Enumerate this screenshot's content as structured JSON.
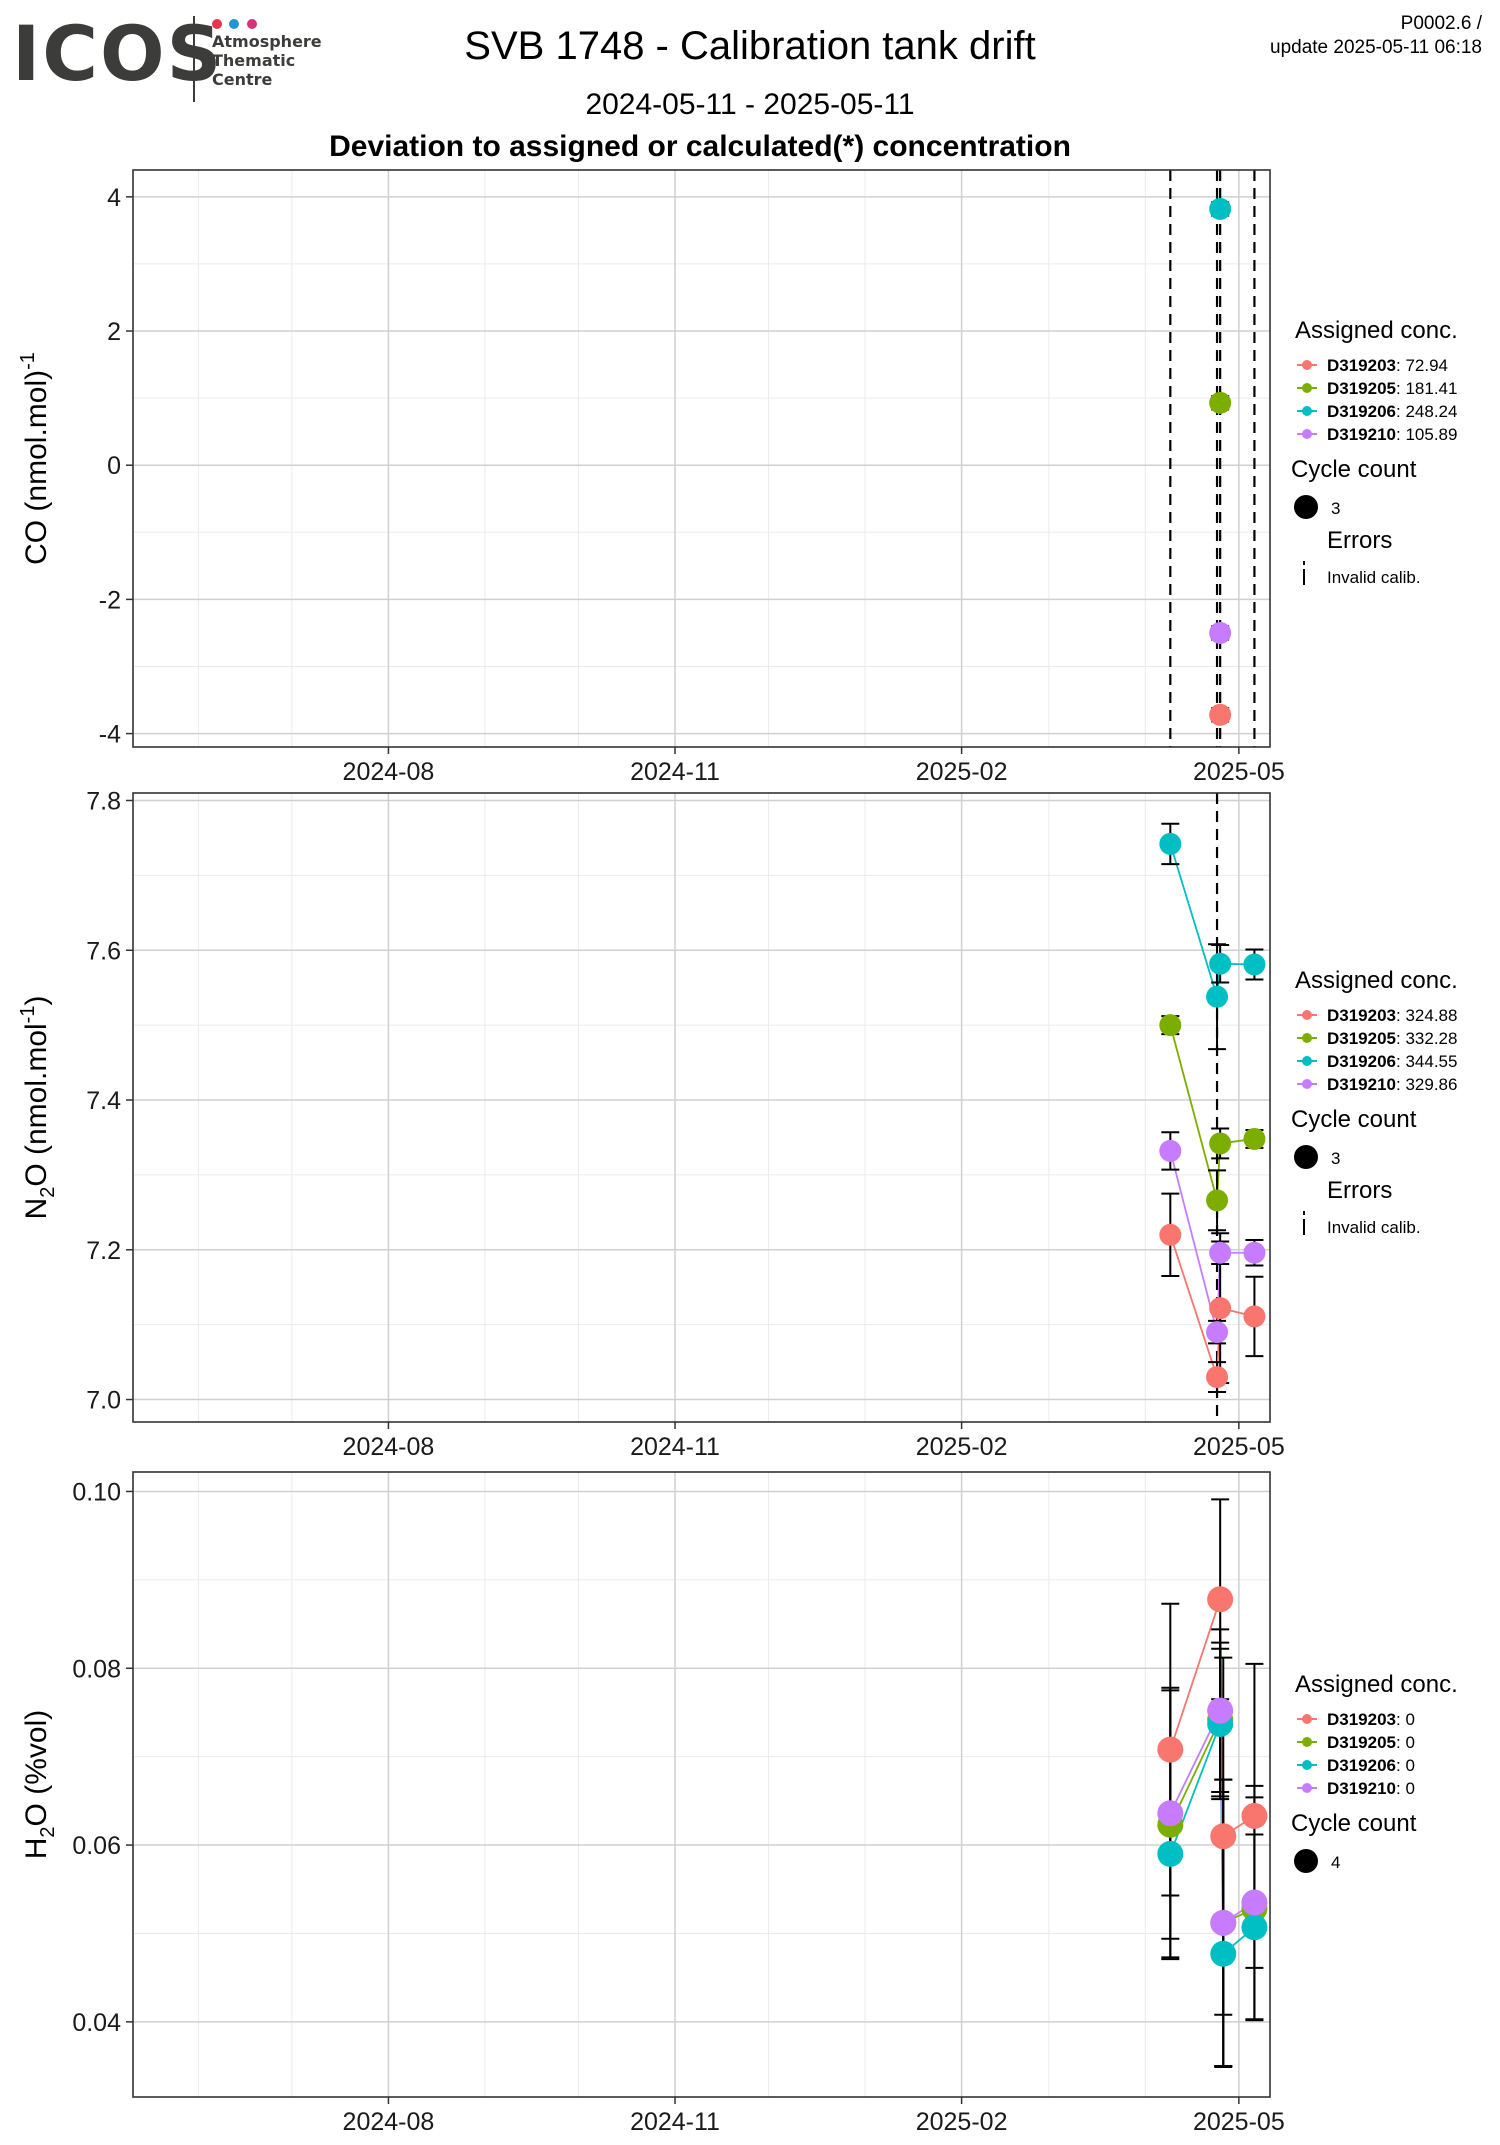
{
  "header": {
    "logo_word": "ICOS",
    "logo_lines": [
      "Atmosphere",
      "Thematic",
      "Centre"
    ],
    "logo_dot_colors": [
      "#e8334a",
      "#1e96d3",
      "#d7337b"
    ],
    "title": "SVB 1748 - Calibration tank drift",
    "date_range": "2024-05-11 - 2025-05-11",
    "subtitle": "Deviation to assigned or calculated(*) concentration",
    "corner_line1": "P0002.6 /",
    "corner_line2": "update  2025-05-11 06:18"
  },
  "colors": {
    "D319203": "#f8766d",
    "D319205": "#7cae00",
    "D319206": "#00bfc4",
    "D319210": "#c77cff"
  },
  "chart_data": [
    {
      "type": "scatter",
      "ylabel": "CO (nmol.mol",
      "ylabel_sup": "-1",
      "ylabel_end": ")",
      "xlim": [
        "2024-05-11",
        "2025-05-11"
      ],
      "ylim": [
        -4.2,
        4.4
      ],
      "yticks": [
        -4,
        -2,
        0,
        2,
        4
      ],
      "ytick_labels": [
        "-4",
        "-2",
        "0",
        "2",
        "4"
      ],
      "xticks": [
        "2024-08-01",
        "2024-11-01",
        "2025-02-01",
        "2025-05-01"
      ],
      "xtick_labels": [
        "2024-08",
        "2024-11",
        "2025-02",
        "2025-05"
      ],
      "invalid_calib_dates": [
        "2025-04-09",
        "2025-04-24",
        "2025-04-25",
        "2025-05-06"
      ],
      "series": [
        {
          "name": "D319203",
          "points": [
            {
              "x": "2025-04-25",
              "y": -3.72,
              "err": 0.1
            }
          ]
        },
        {
          "name": "D319205",
          "points": [
            {
              "x": "2025-04-25",
              "y": 0.93,
              "err": 0.1
            }
          ]
        },
        {
          "name": "D319206",
          "points": [
            {
              "x": "2025-04-25",
              "y": 3.82,
              "err": 0.1
            }
          ]
        },
        {
          "name": "D319210",
          "points": [
            {
              "x": "2025-04-25",
              "y": -2.5,
              "err": 0.1
            }
          ]
        }
      ],
      "legend": {
        "title": "Assigned conc.",
        "items": [
          {
            "id": "D319203",
            "value": "72.94"
          },
          {
            "id": "D319205",
            "value": "181.41"
          },
          {
            "id": "D319206",
            "value": "248.24"
          },
          {
            "id": "D319210",
            "value": "105.89"
          }
        ],
        "cycle_title": "Cycle count",
        "cycle_value": "3",
        "errors_title": "Errors",
        "errors_item": "Invalid calib."
      }
    },
    {
      "type": "scatter",
      "ylabel": "N",
      "ylabel_sub": "2",
      "ylabel_end": "O (nmol.mol",
      "ylabel_sup": "-1",
      "ylabel_end2": ")",
      "xlim": [
        "2024-05-11",
        "2025-05-11"
      ],
      "ylim": [
        6.97,
        7.81
      ],
      "yticks": [
        7.0,
        7.2,
        7.4,
        7.6,
        7.8
      ],
      "ytick_labels": [
        "7.0",
        "7.2",
        "7.4",
        "7.6",
        "7.8"
      ],
      "xticks": [
        "2024-08-01",
        "2024-11-01",
        "2025-02-01",
        "2025-05-01"
      ],
      "xtick_labels": [
        "2024-08",
        "2024-11",
        "2025-02",
        "2025-05"
      ],
      "invalid_calib_dates": [
        "2025-04-24"
      ],
      "series": [
        {
          "name": "D319203",
          "points": [
            {
              "x": "2025-04-09",
              "y": 7.22,
              "err": 0.055
            },
            {
              "x": "2025-04-24",
              "y": 7.03,
              "err": 0.02
            },
            {
              "x": "2025-04-25",
              "y": 7.122,
              "err": 0.1
            },
            {
              "x": "2025-05-06",
              "y": 7.111,
              "err": 0.053
            }
          ]
        },
        {
          "name": "D319205",
          "points": [
            {
              "x": "2025-04-09",
              "y": 7.5,
              "err": 0.012
            },
            {
              "x": "2025-04-24",
              "y": 7.266,
              "err": 0.04
            },
            {
              "x": "2025-04-25",
              "y": 7.342,
              "err": 0.02
            },
            {
              "x": "2025-05-06",
              "y": 7.348,
              "err": 0.012
            }
          ]
        },
        {
          "name": "D319206",
          "points": [
            {
              "x": "2025-04-09",
              "y": 7.742,
              "err": 0.027
            },
            {
              "x": "2025-04-24",
              "y": 7.538,
              "err": 0.07
            },
            {
              "x": "2025-04-25",
              "y": 7.582,
              "err": 0.025
            },
            {
              "x": "2025-05-06",
              "y": 7.581,
              "err": 0.02
            }
          ]
        },
        {
          "name": "D319210",
          "points": [
            {
              "x": "2025-04-09",
              "y": 7.332,
              "err": 0.025
            },
            {
              "x": "2025-04-24",
              "y": 7.09,
              "err": 0.015
            },
            {
              "x": "2025-04-25",
              "y": 7.196,
              "err": 0.015
            },
            {
              "x": "2025-05-06",
              "y": 7.196,
              "err": 0.017
            }
          ]
        }
      ],
      "legend": {
        "title": "Assigned conc.",
        "items": [
          {
            "id": "D319203",
            "value": "324.88"
          },
          {
            "id": "D319205",
            "value": "332.28"
          },
          {
            "id": "D319206",
            "value": "344.55"
          },
          {
            "id": "D319210",
            "value": "329.86"
          }
        ],
        "cycle_title": "Cycle count",
        "cycle_value": "3",
        "errors_title": "Errors",
        "errors_item": "Invalid calib."
      }
    },
    {
      "type": "scatter",
      "ylabel": "H",
      "ylabel_sub": "2",
      "ylabel_end": "O (%vol)",
      "xlim": [
        "2024-05-11",
        "2025-05-11"
      ],
      "ylim": [
        0.0315,
        0.1022
      ],
      "yticks": [
        0.04,
        0.06,
        0.08,
        0.1
      ],
      "ytick_labels": [
        "0.04",
        "0.06",
        "0.08",
        "0.10"
      ],
      "xticks": [
        "2024-08-01",
        "2024-11-01",
        "2025-02-01",
        "2025-05-01"
      ],
      "xtick_labels": [
        "2024-08",
        "2024-11",
        "2025-02",
        "2025-05"
      ],
      "invalid_calib_dates": [],
      "series": [
        {
          "name": "D319203",
          "points": [
            {
              "x": "2025-04-09",
              "y": 0.0708,
              "err": 0.0165
            },
            {
              "x": "2025-04-25",
              "y": 0.0878,
              "err": 0.0113
            },
            {
              "x": "2025-04-26",
              "y": 0.061,
              "err": 0.0202
            },
            {
              "x": "2025-05-06",
              "y": 0.0633,
              "err": 0.0172
            }
          ]
        },
        {
          "name": "D319205",
          "points": [
            {
              "x": "2025-04-09",
              "y": 0.0623,
              "err": 0.0152
            },
            {
              "x": "2025-04-25",
              "y": 0.0742,
              "err": 0.0087
            },
            {
              "x": "2025-04-26",
              "y": 0.0512,
              "err": 0.0162
            },
            {
              "x": "2025-05-06",
              "y": 0.0528,
              "err": 0.0126
            }
          ]
        },
        {
          "name": "D319206",
          "points": [
            {
              "x": "2025-04-09",
              "y": 0.059,
              "err": 0.0117
            },
            {
              "x": "2025-04-25",
              "y": 0.0737,
              "err": 0.0085
            },
            {
              "x": "2025-04-26",
              "y": 0.0477,
              "err": 0.0128
            },
            {
              "x": "2025-05-06",
              "y": 0.0507,
              "err": 0.0105
            }
          ]
        },
        {
          "name": "D319210",
          "points": [
            {
              "x": "2025-04-09",
              "y": 0.0636,
              "err": 0.0142
            },
            {
              "x": "2025-04-25",
              "y": 0.0752,
              "err": 0.0092
            },
            {
              "x": "2025-04-26",
              "y": 0.0512,
              "err": 0.0162
            },
            {
              "x": "2025-05-06",
              "y": 0.0535,
              "err": 0.0132
            }
          ]
        }
      ],
      "legend": {
        "title": "Assigned conc.",
        "items": [
          {
            "id": "D319203",
            "value": "0"
          },
          {
            "id": "D319205",
            "value": "0"
          },
          {
            "id": "D319206",
            "value": "0"
          },
          {
            "id": "D319210",
            "value": "0"
          }
        ],
        "cycle_title": "Cycle count",
        "cycle_value": "4"
      }
    }
  ]
}
